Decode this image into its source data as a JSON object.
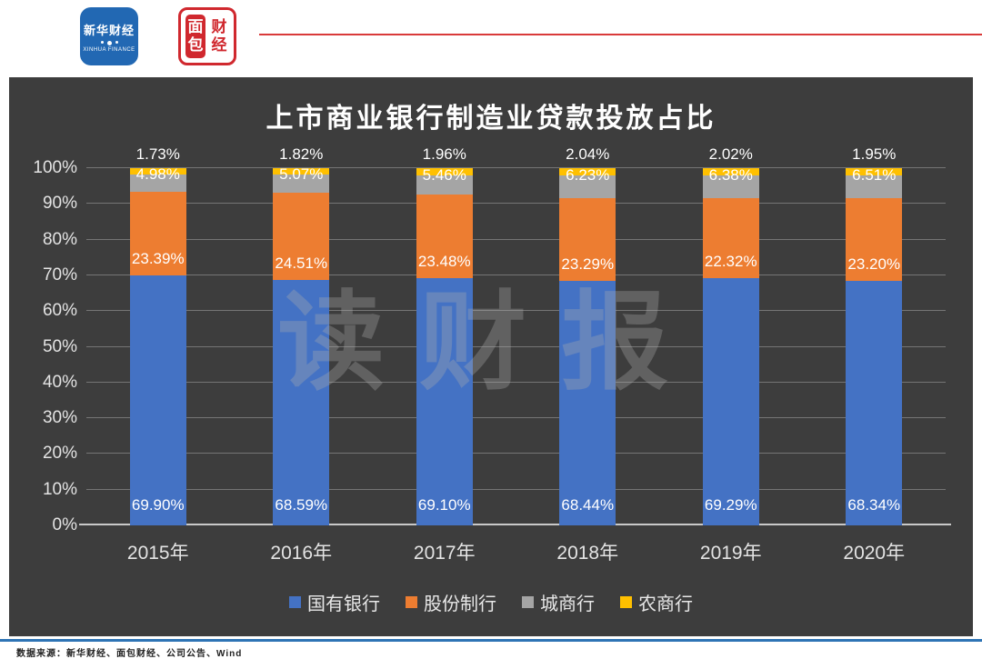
{
  "header": {
    "xinhua_logo": {
      "cn": "新华财经",
      "en": "XINHUA FINANCE"
    },
    "bread_logo": {
      "left_top": "面",
      "left_bottom": "包",
      "right_top": "财",
      "right_bottom": "经"
    }
  },
  "chart_data": {
    "type": "bar",
    "stacked": true,
    "title": "上市商业银行制造业贷款投放占比",
    "categories": [
      "2015年",
      "2016年",
      "2017年",
      "2018年",
      "2019年",
      "2020年"
    ],
    "series": [
      {
        "name": "国有银行",
        "color": "#4472C4",
        "values": [
          69.9,
          68.59,
          69.1,
          68.44,
          69.29,
          68.34
        ]
      },
      {
        "name": "股份制行",
        "color": "#ED7D31",
        "values": [
          23.39,
          24.51,
          23.48,
          23.29,
          22.32,
          23.2
        ]
      },
      {
        "name": "城商行",
        "color": "#A5A5A5",
        "values": [
          4.98,
          5.07,
          5.46,
          6.23,
          6.38,
          6.51
        ]
      },
      {
        "name": "农商行",
        "color": "#FFC000",
        "values": [
          1.73,
          1.82,
          1.96,
          2.04,
          2.02,
          1.95
        ]
      }
    ],
    "y_ticks": [
      "100%",
      "90%",
      "80%",
      "70%",
      "60%",
      "50%",
      "40%",
      "30%",
      "20%",
      "10%",
      "0%"
    ],
    "ylim": [
      0,
      100
    ],
    "grid": true,
    "legend_position": "bottom",
    "watermark": "读财报",
    "colors": {
      "panel_background": "#3D3D3D",
      "gridline": "#757575",
      "axis_line": "#C9C9C9",
      "data_label": "#FFFFFF",
      "tick_label": "#E3E3E3"
    }
  },
  "footer": {
    "source": "数据来源：新华财经、面包财经、公司公告、Wind"
  },
  "accents": {
    "header_line": "#D93A3A",
    "footer_line": "#2E74B5",
    "xinhua_blue": "#2268B3",
    "bread_red": "#D0282E"
  }
}
